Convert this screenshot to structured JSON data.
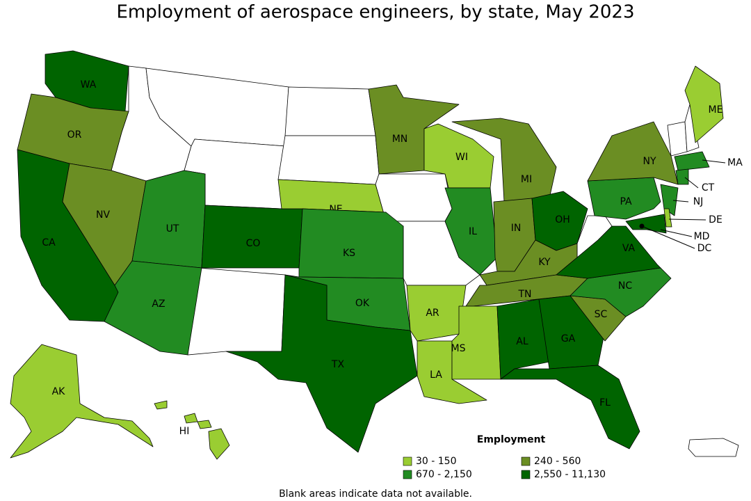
{
  "title": "Employment of aerospace engineers, by state, May 2023",
  "states": [
    {
      "label": "WA",
      "color": "#006400"
    },
    {
      "label": "OR",
      "color": "#6b8e23"
    },
    {
      "label": "CA",
      "color": "#006400"
    },
    {
      "label": "NV",
      "color": "#6b8e23"
    },
    {
      "label": "UT",
      "color": "#228b22"
    },
    {
      "label": "CO",
      "color": "#006400"
    },
    {
      "label": "AZ",
      "color": "#228b22"
    },
    {
      "label": "NE",
      "color": "#9acd32"
    },
    {
      "label": "KS",
      "color": "#228b22"
    },
    {
      "label": "OK",
      "color": "#228b22"
    },
    {
      "label": "TX",
      "color": "#006400"
    },
    {
      "label": "MN",
      "color": "#6b8e23"
    },
    {
      "label": "AR",
      "color": "#9acd32"
    },
    {
      "label": "LA",
      "color": "#9acd32"
    },
    {
      "label": "WI",
      "color": "#9acd32"
    },
    {
      "label": "IL",
      "color": "#228b22"
    },
    {
      "label": "MI",
      "color": "#6b8e23"
    },
    {
      "label": "IN",
      "color": "#6b8e23"
    },
    {
      "label": "OH",
      "color": "#006400"
    },
    {
      "label": "KY",
      "color": "#6b8e23"
    },
    {
      "label": "TN",
      "color": "#6b8e23"
    },
    {
      "label": "MS",
      "color": "#9acd32"
    },
    {
      "label": "AL",
      "color": "#006400"
    },
    {
      "label": "GA",
      "color": "#006400"
    },
    {
      "label": "FL",
      "color": "#006400"
    },
    {
      "label": "SC",
      "color": "#6b8e23"
    },
    {
      "label": "NC",
      "color": "#228b22"
    },
    {
      "label": "VA",
      "color": "#006400"
    },
    {
      "label": "PA",
      "color": "#228b22"
    },
    {
      "label": "NY",
      "color": "#6b8e23"
    },
    {
      "label": "ME",
      "color": "#9acd32"
    },
    {
      "label": "MA",
      "color": "#228b22"
    },
    {
      "label": "CT",
      "color": "#228b22"
    },
    {
      "label": "NJ",
      "color": "#228b22"
    },
    {
      "label": "DE",
      "color": "#9acd32"
    },
    {
      "label": "MD",
      "color": "#006400"
    },
    {
      "label": "DC",
      "color": "#000000"
    },
    {
      "label": "AK",
      "color": "#9acd32"
    },
    {
      "label": "HI",
      "color": "#9acd32"
    }
  ],
  "legend": {
    "title": "Employment",
    "items": [
      {
        "label": "30 - 150",
        "color": "#9acd32"
      },
      {
        "label": "240 - 560",
        "color": "#6b8e23"
      },
      {
        "label": "670 - 2,150",
        "color": "#228b22"
      },
      {
        "label": "2,550 - 11,130",
        "color": "#006400"
      }
    ]
  },
  "note": "Blank areas indicate data not available."
}
